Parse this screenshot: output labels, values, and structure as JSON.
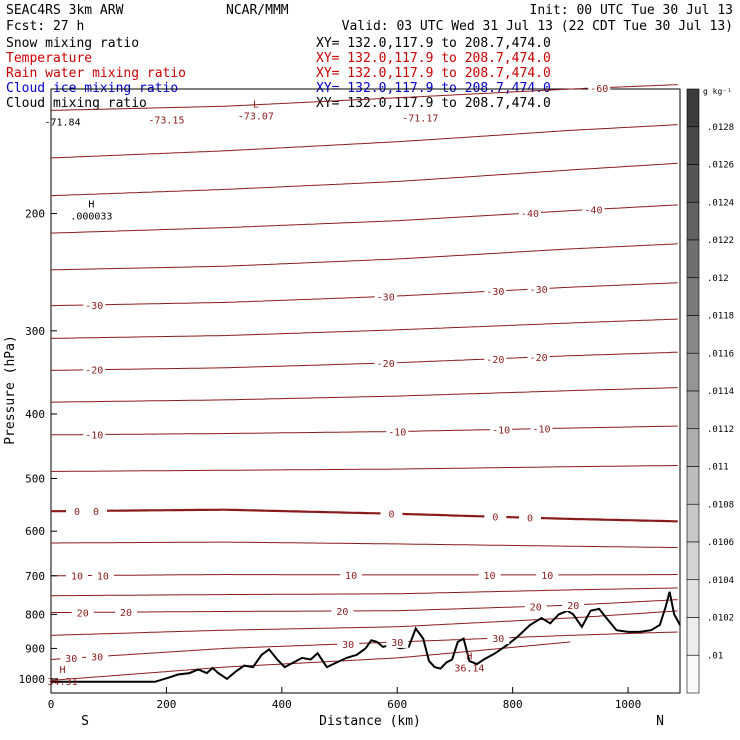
{
  "header": {
    "model": "SEAC4RS  3km ARW",
    "center": "NCAR/MMM",
    "init": "Init: 00 UTC Tue 30 Jul 13",
    "fcst": "Fcst:   27 h",
    "valid": "Valid: 03 UTC Wed 31 Jul 13 (22 CDT Tue 30 Jul 13)"
  },
  "fields": [
    {
      "name": "Snow mixing ratio",
      "xy": "XY= 132.0,117.9 to 208.7,474.0",
      "color": "#000000"
    },
    {
      "name": "Temperature",
      "xy": "XY= 132.0,117.9 to 208.7,474.0",
      "color": "#cc0000"
    },
    {
      "name": "Rain water mixing ratio",
      "xy": "XY= 132.0,117.9 to 208.7,474.0",
      "color": "#cc0000"
    },
    {
      "name": "Cloud ice mixing ratio",
      "xy": "XY= 132.0,117.9 to 208.7,474.0",
      "color": "#0000cc"
    },
    {
      "name": "Cloud mixing ratio",
      "xy": "XY= 132.0,117.9 to 208.7,474.0",
      "color": "#000000"
    }
  ],
  "colors": {
    "isotherm": "#8b1a1a",
    "terrain": "#000000",
    "frame": "#000000"
  },
  "chart_data": {
    "type": "cross-section",
    "xlabel": "Distance (km)",
    "ylabel": "Pressure (hPa)",
    "xlim": [
      0,
      1090
    ],
    "ylim": [
      1050,
      130
    ],
    "y_scale": "log",
    "x_ticks": [
      0,
      200,
      400,
      600,
      800,
      1000
    ],
    "y_ticks": [
      200,
      300,
      400,
      500,
      600,
      700,
      800,
      900,
      1000
    ],
    "start_label": "S",
    "end_label": "N",
    "colorbar": {
      "unit": "g kg⁻¹",
      "labels": [
        ".0128",
        ".0126",
        ".0124",
        ".0122",
        ".012",
        ".0118",
        ".0116",
        ".0114",
        ".0112",
        ".011",
        ".0108",
        ".0106",
        ".0104",
        ".0102",
        ".01"
      ]
    },
    "isotherms": [
      {
        "label": "-60",
        "x": [
          0,
          300,
          600,
          900,
          1090
        ],
        "p": [
          140,
          138,
          134,
          130,
          128
        ],
        "labels": [
          {
            "x": 950,
            "text": "-60"
          }
        ]
      },
      {
        "label": "-50",
        "x": [
          0,
          300,
          600,
          900,
          1090
        ],
        "p": [
          165,
          161,
          156,
          150,
          147
        ]
      },
      {
        "label": "-45",
        "x": [
          0,
          300,
          600,
          900,
          1090
        ],
        "p": [
          188,
          184,
          179,
          172,
          168
        ]
      },
      {
        "label": "-40",
        "x": [
          0,
          300,
          600,
          900,
          1090
        ],
        "p": [
          214,
          210,
          205,
          198,
          194
        ],
        "labels": [
          {
            "x": 830,
            "text": "-40"
          },
          {
            "x": 940,
            "text": "-40"
          }
        ]
      },
      {
        "label": "-35",
        "x": [
          0,
          300,
          600,
          900,
          1090
        ],
        "p": [
          243,
          240,
          234,
          226,
          222
        ]
      },
      {
        "label": "-30",
        "x": [
          0,
          300,
          600,
          900,
          1090
        ],
        "p": [
          275,
          272,
          266,
          258,
          254
        ],
        "labels": [
          {
            "x": 75,
            "text": "-30"
          },
          {
            "x": 580,
            "text": "-30"
          },
          {
            "x": 770,
            "text": "-30"
          },
          {
            "x": 845,
            "text": "-30"
          }
        ]
      },
      {
        "label": "-25",
        "x": [
          0,
          300,
          600,
          900,
          1090
        ],
        "p": [
          308,
          305,
          299,
          292,
          288
        ]
      },
      {
        "label": "-20",
        "x": [
          0,
          300,
          600,
          900,
          1090
        ],
        "p": [
          344,
          341,
          335,
          327,
          323
        ],
        "labels": [
          {
            "x": 75,
            "text": "-20"
          },
          {
            "x": 580,
            "text": "-20"
          },
          {
            "x": 770,
            "text": "-20"
          },
          {
            "x": 845,
            "text": "-20"
          }
        ]
      },
      {
        "label": "-15",
        "x": [
          0,
          300,
          600,
          900,
          1090
        ],
        "p": [
          384,
          381,
          376,
          369,
          365
        ]
      },
      {
        "label": "-10",
        "x": [
          0,
          300,
          600,
          900,
          1090
        ],
        "p": [
          430,
          428,
          425,
          420,
          417
        ],
        "labels": [
          {
            "x": 75,
            "text": "-10"
          },
          {
            "x": 600,
            "text": "-10"
          },
          {
            "x": 780,
            "text": "-10"
          },
          {
            "x": 850,
            "text": "-10"
          }
        ]
      },
      {
        "label": "-5",
        "x": [
          0,
          300,
          600,
          900,
          1090
        ],
        "p": [
          488,
          486,
          484,
          480,
          478
        ]
      },
      {
        "label": "0",
        "x": [
          0,
          300,
          600,
          900,
          1090
        ],
        "p": [
          560,
          557,
          565,
          575,
          580
        ],
        "bold": true,
        "labels": [
          {
            "x": 45,
            "text": "0"
          },
          {
            "x": 78,
            "text": "0"
          },
          {
            "x": 590,
            "text": "0"
          },
          {
            "x": 770,
            "text": "0"
          },
          {
            "x": 830,
            "text": "0"
          }
        ]
      },
      {
        "label": "5",
        "x": [
          0,
          300,
          600,
          900,
          1090
        ],
        "p": [
          625,
          623,
          627,
          632,
          635
        ]
      },
      {
        "label": "10",
        "x": [
          0,
          300,
          600,
          900,
          1090
        ],
        "p": [
          700,
          697,
          698,
          698,
          697
        ],
        "labels": [
          {
            "x": 45,
            "text": "10"
          },
          {
            "x": 90,
            "text": "10"
          },
          {
            "x": 520,
            "text": "10"
          },
          {
            "x": 760,
            "text": "10"
          },
          {
            "x": 860,
            "text": "10"
          }
        ]
      },
      {
        "label": "15",
        "x": [
          0,
          300,
          600,
          900,
          1090
        ],
        "p": [
          750,
          747,
          745,
          735,
          730
        ]
      },
      {
        "label": "20",
        "x": [
          0,
          300,
          600,
          900,
          1090
        ],
        "p": [
          795,
          792,
          790,
          775,
          760
        ],
        "labels": [
          {
            "x": 55,
            "text": "20"
          },
          {
            "x": 130,
            "text": "20"
          },
          {
            "x": 505,
            "text": "20"
          },
          {
            "x": 840,
            "text": "20"
          },
          {
            "x": 905,
            "text": "20"
          }
        ]
      },
      {
        "label": "25",
        "x": [
          0,
          300,
          600,
          900,
          1090
        ],
        "p": [
          860,
          845,
          835,
          810,
          790
        ]
      },
      {
        "label": "30",
        "x": [
          0,
          300,
          600,
          900,
          1090
        ],
        "p": [
          935,
          900,
          880,
          860,
          850
        ],
        "labels": [
          {
            "x": 35,
            "text": "30"
          },
          {
            "x": 80,
            "text": "30"
          },
          {
            "x": 515,
            "text": "30"
          },
          {
            "x": 600,
            "text": "30"
          },
          {
            "x": 775,
            "text": "30"
          }
        ]
      },
      {
        "label": "35",
        "x": [
          0,
          300,
          600,
          900
        ],
        "p": [
          1005,
          960,
          930,
          880
        ]
      }
    ],
    "terrain": {
      "x": [
        0,
        30,
        100,
        180,
        205,
        220,
        240,
        255,
        270,
        280,
        290,
        305,
        320,
        335,
        350,
        365,
        378,
        392,
        405,
        420,
        435,
        450,
        462,
        478,
        495,
        512,
        530,
        545,
        555,
        565,
        575,
        590,
        605,
        620,
        632,
        645,
        655,
        665,
        675,
        685,
        695,
        705,
        715,
        725,
        738,
        750,
        770,
        790,
        808,
        830,
        850,
        865,
        880,
        895,
        905,
        920,
        935,
        950,
        960,
        980,
        1000,
        1020,
        1040,
        1055,
        1065,
        1072,
        1080,
        1090
      ],
      "p": [
        1010,
        1010,
        1010,
        1010,
        995,
        985,
        980,
        968,
        980,
        963,
        980,
        1000,
        975,
        955,
        960,
        920,
        903,
        935,
        960,
        945,
        930,
        935,
        915,
        960,
        945,
        930,
        920,
        900,
        875,
        880,
        895,
        890,
        900,
        895,
        840,
        870,
        940,
        960,
        965,
        945,
        935,
        880,
        870,
        940,
        950,
        935,
        915,
        890,
        865,
        830,
        810,
        825,
        800,
        790,
        800,
        835,
        790,
        785,
        805,
        845,
        850,
        850,
        845,
        830,
        780,
        740,
        800,
        830
      ]
    },
    "annotations": [
      {
        "x": 20,
        "p": 990,
        "text": "H",
        "sub": "34.31"
      },
      {
        "x": 725,
        "p": 945,
        "text": "H",
        "sub": "36.14"
      },
      {
        "x": 70,
        "p": 198,
        "text": "H",
        "sub": ".000033",
        "color": "#000000"
      },
      {
        "x": 355,
        "p": 140,
        "text": "L",
        "sub": "-73.07"
      },
      {
        "x": 200,
        "p": 142,
        "text": "",
        "sub": "-73.15"
      },
      {
        "x": 20,
        "p": 143,
        "text": "",
        "sub": "-71.84",
        "color": "#000000"
      },
      {
        "x": 640,
        "p": 141,
        "text": "",
        "sub": "-71.17"
      }
    ]
  }
}
